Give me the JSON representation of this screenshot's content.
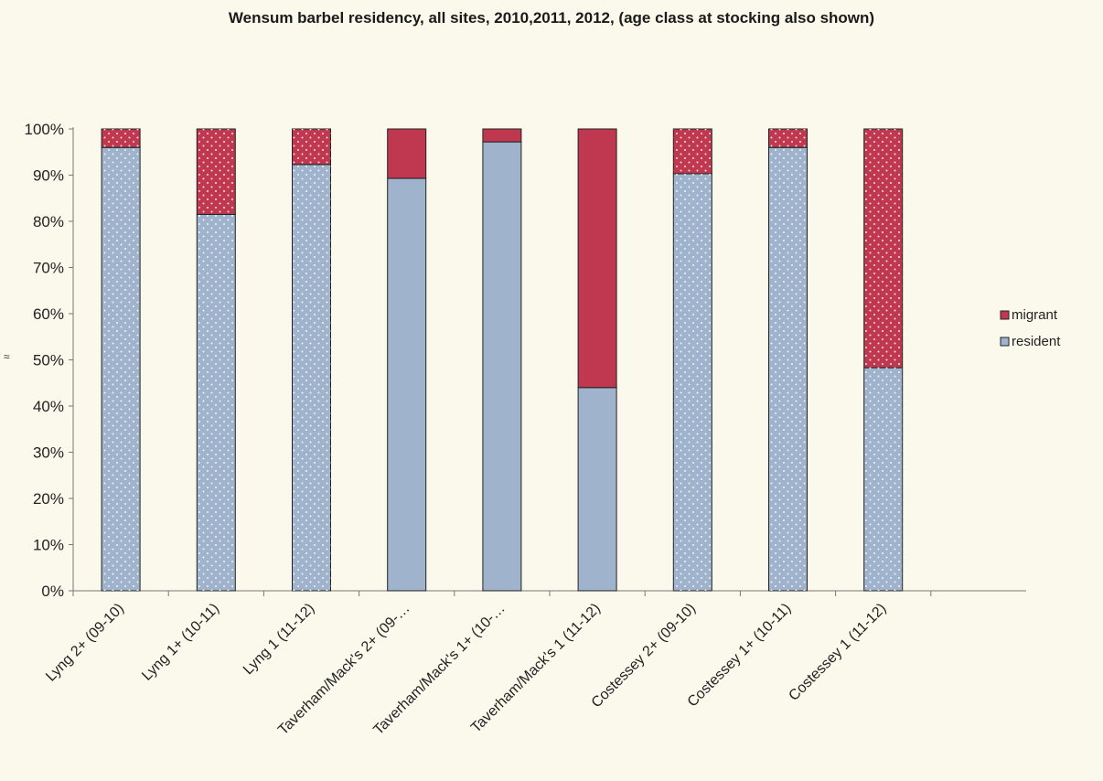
{
  "chart_data": {
    "type": "bar",
    "stacked": true,
    "percent": true,
    "title": "Wensum barbel residency, all sites, 2010,2011, 2012, (age class at stocking also shown)",
    "categories": [
      "Lyng 2+ (09-10)",
      "Lyng 1+ (10-11)",
      "Lyng 1 (11-12)",
      "Taverham/Mack's 2+ (09-…",
      "Taverham/Mack's 1+ (10-…",
      "Taverham/Mack's 1 (11-12)",
      "Costessey 2+ (09-10)",
      "Costessey 1+ (10-11)",
      "Costessey 1  (11-12)"
    ],
    "series": [
      {
        "name": "resident",
        "values": [
          96,
          81.5,
          92.3,
          89.3,
          97.2,
          44,
          90.3,
          96,
          48.3
        ],
        "color": "#9fb3cc"
      },
      {
        "name": "migrant",
        "values": [
          4,
          18.5,
          7.7,
          10.7,
          2.8,
          56,
          9.7,
          4,
          51.7
        ],
        "color": "#c0384f"
      }
    ],
    "dotted": [
      true,
      true,
      true,
      false,
      false,
      false,
      true,
      true,
      true
    ],
    "ylim": [
      0,
      100
    ],
    "yticks": [
      "0%",
      "10%",
      "20%",
      "30%",
      "40%",
      "50%",
      "60%",
      "70%",
      "80%",
      "90%",
      "100%"
    ],
    "legend": [
      "migrant",
      "resident"
    ],
    "legend_position": "right",
    "grid": false
  },
  "stray_mark": "≈"
}
